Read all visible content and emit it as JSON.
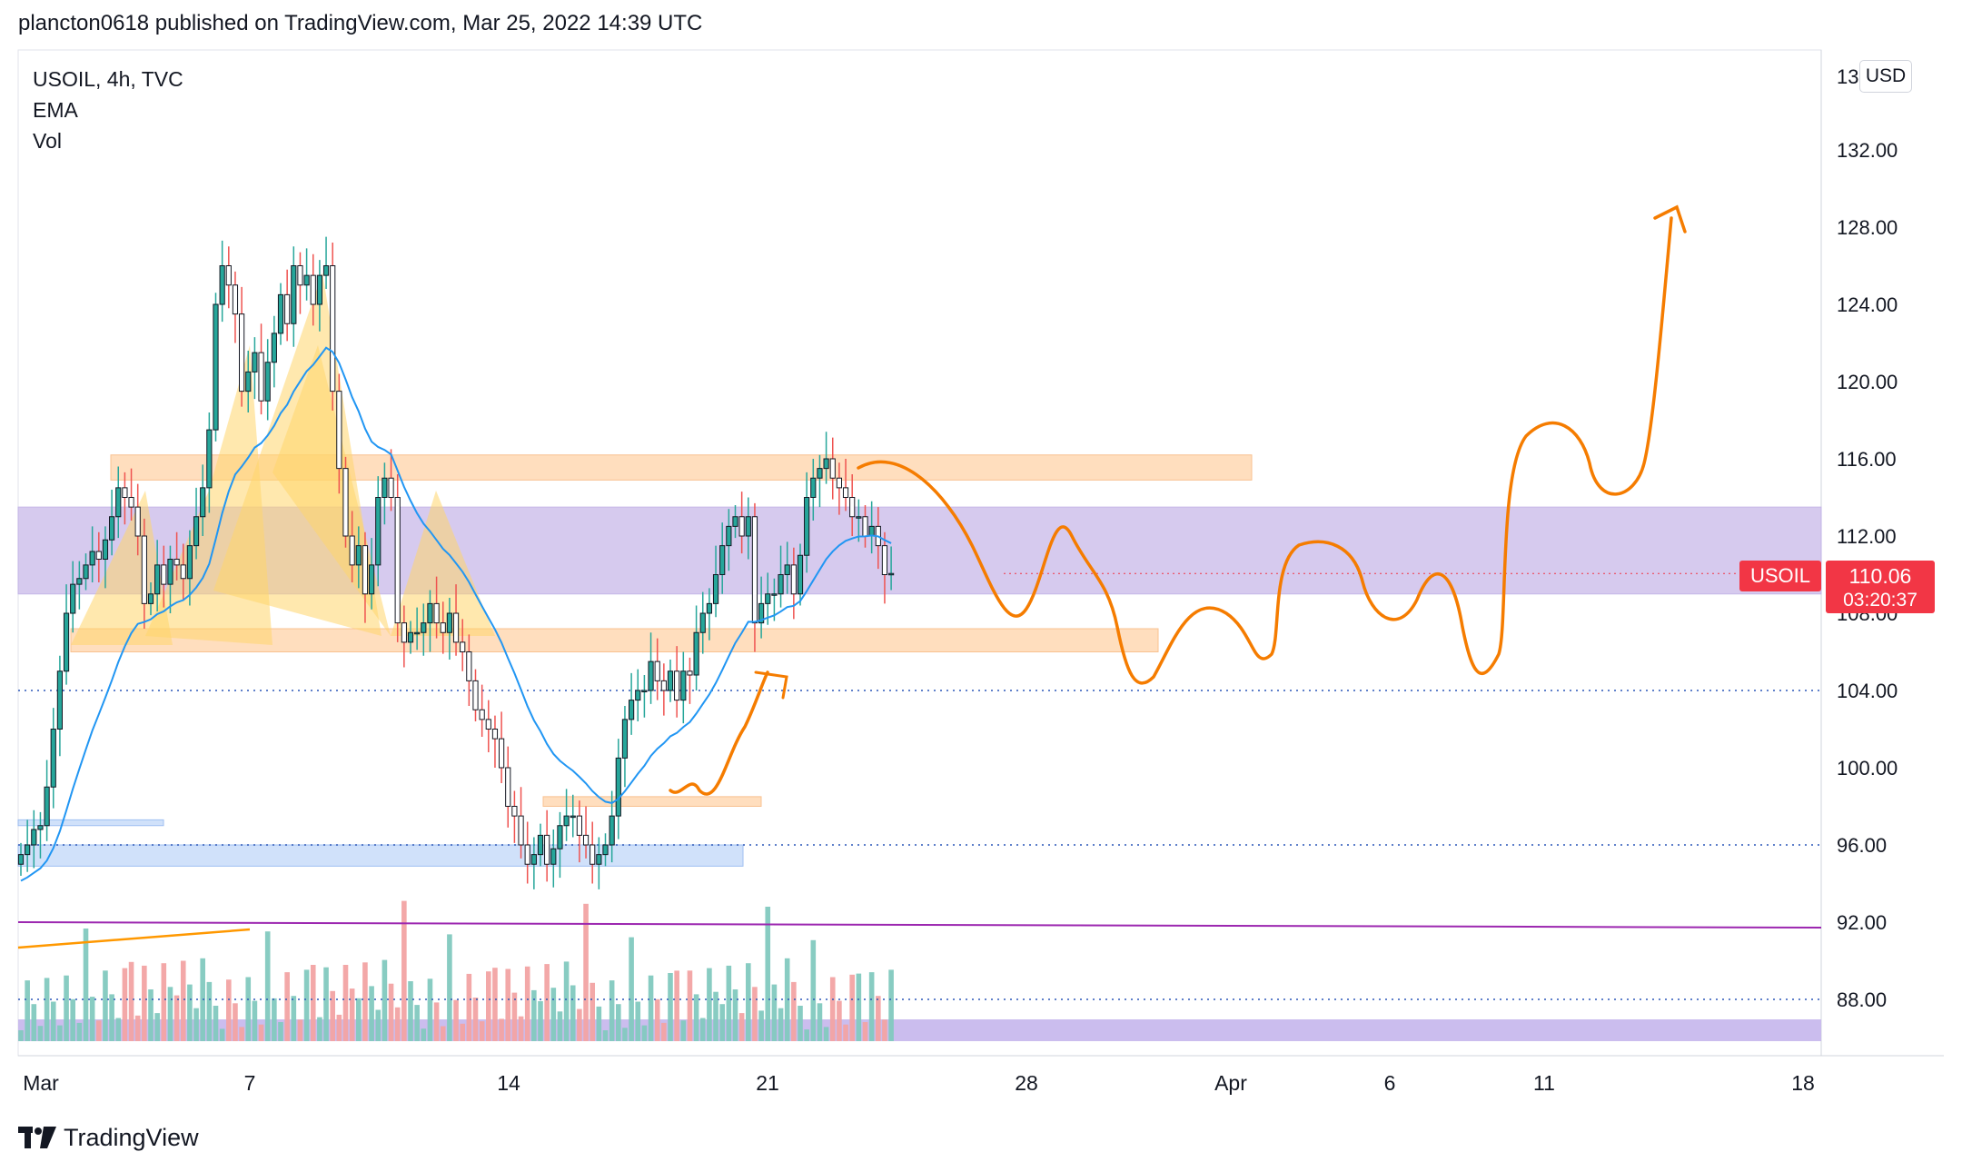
{
  "header": {
    "publish_line": "plancton0618 published on TradingView.com, Mar 25, 2022 14:39 UTC"
  },
  "legend": {
    "symbol_line": "USOIL, 4h, TVC",
    "ema_label": "EMA",
    "vol_label": "Vol"
  },
  "price_scale": {
    "currency": "USD"
  },
  "last_price": {
    "symbol": "USOIL",
    "price": "110.06",
    "countdown": "03:20:37"
  },
  "footer": {
    "brand": "TradingView"
  },
  "colors": {
    "up": "#26a69a",
    "down": "#ef5350",
    "ema": "#2196f3",
    "purple_zone": "#d4c8ee",
    "orange_zone": "#ffd9b3",
    "blue_zone": "#c8dcfa",
    "drawing": "#f57c00",
    "pattern": "#ffd56b",
    "trendline": "#9c27b0"
  },
  "chart_data": {
    "type": "candlestick",
    "title": "USOIL, 4h, TVC",
    "ylabel": "USD",
    "ylim": [
      85,
      134
    ],
    "y_ticks": [
      "88.00",
      "92.00",
      "96.00",
      "100.00",
      "104.00",
      "108.00",
      "112.00",
      "116.00",
      "120.00",
      "124.00",
      "128.00",
      "132.00"
    ],
    "x_ticks": [
      "Mar",
      "7",
      "14",
      "21",
      "28",
      "Apr",
      "6",
      "11",
      "18"
    ],
    "series": [
      {
        "name": "USOIL",
        "kind": "ohlc",
        "close": [
          95.5,
          96.0,
          96.8,
          97.0,
          99.0,
          102.0,
          105.0,
          108.0,
          109.5,
          109.8,
          110.5,
          111.2,
          110.8,
          111.8,
          113.0,
          114.5,
          114.0,
          113.5,
          112.0,
          108.5,
          109.0,
          110.5,
          109.5,
          110.8,
          110.5,
          109.8,
          111.5,
          113.0,
          114.5,
          117.5,
          124.0,
          126.0,
          125.0,
          123.5,
          119.5,
          120.5,
          121.5,
          119.0,
          121.0,
          122.5,
          124.5,
          123.0,
          126.0,
          125.0,
          125.5,
          124.0,
          125.5,
          126.0,
          119.5,
          115.5,
          112.0,
          110.5,
          111.5,
          109.0,
          110.5,
          114.0,
          115.0,
          114.0,
          107.5,
          106.5,
          107.0,
          107.0,
          107.5,
          108.5,
          107.5,
          107.0,
          108.0,
          106.5,
          106.0,
          104.5,
          103.0,
          102.5,
          102.0,
          101.5,
          100.0,
          98.0,
          97.5,
          96.0,
          95.0,
          95.5,
          96.5,
          95.0,
          95.8,
          97.0,
          97.5,
          97.5,
          96.5,
          96.0,
          95.0,
          95.5,
          96.0,
          97.5,
          100.5,
          102.5,
          103.5,
          104.0,
          104.0,
          105.5,
          104.5,
          104.0,
          105.0,
          103.5,
          105.0,
          104.8,
          107.0,
          108.0,
          108.5,
          110.0,
          111.5,
          112.5,
          113.0,
          112.0,
          113.0,
          107.5,
          108.5,
          109.0,
          109.0,
          110.0,
          110.5,
          109.0,
          111.0,
          114.0,
          115.0,
          115.5,
          116.0,
          115.0,
          114.5,
          114.0,
          113.0,
          113.0,
          112.0,
          112.5,
          111.5,
          110.0,
          110.06
        ]
      },
      {
        "name": "EMA",
        "kind": "line"
      },
      {
        "name": "Vol",
        "kind": "volume"
      }
    ],
    "levels": [
      {
        "price": 104.0,
        "style": "dotted"
      },
      {
        "price": 96.0,
        "style": "dotted"
      },
      {
        "price": 88.0,
        "style": "dotted"
      }
    ],
    "zones": [
      {
        "color": "purple",
        "from": 109.0,
        "to": 113.5
      },
      {
        "color": "orange",
        "from": 114.9,
        "to": 116.2
      },
      {
        "color": "orange",
        "from": 106.0,
        "to": 107.2
      },
      {
        "color": "orange",
        "from": 98.0,
        "to": 98.5
      },
      {
        "color": "blue",
        "from": 94.9,
        "to": 96.0
      },
      {
        "color": "blue",
        "from": 97.0,
        "to": 97.3
      }
    ],
    "last_value": 110.06,
    "grid": false
  }
}
